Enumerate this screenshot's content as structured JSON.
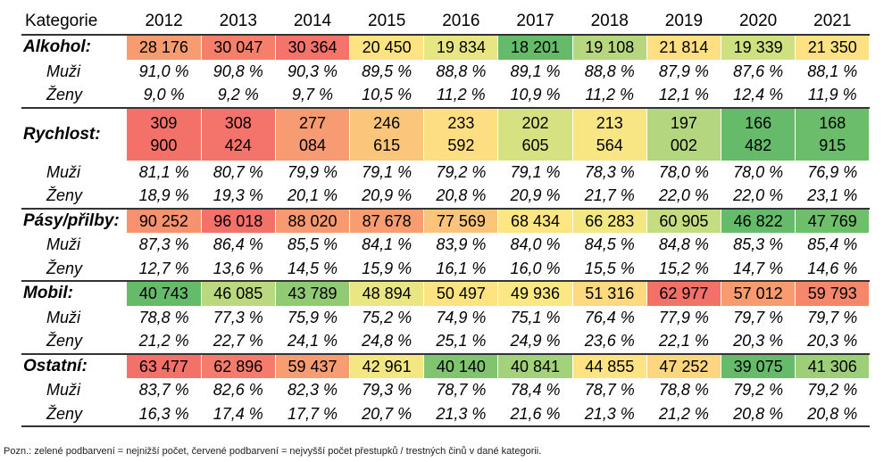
{
  "chart_data": {
    "type": "table",
    "header_label": "Kategorie",
    "years": [
      "2012",
      "2013",
      "2014",
      "2015",
      "2016",
      "2017",
      "2018",
      "2019",
      "2020",
      "2021"
    ],
    "groups": [
      {
        "label": "Alkohol:",
        "totals": [
          "28 176",
          "30 047",
          "30 364",
          "20 450",
          "19 834",
          "18 201",
          "19 108",
          "21 814",
          "19 339",
          "21 350"
        ],
        "total_values": [
          28176,
          30047,
          30364,
          20450,
          19834,
          18201,
          19108,
          21814,
          19339,
          21350
        ],
        "colors": [
          "#f79b71",
          "#f57f6b",
          "#f4736a",
          "#fee383",
          "#e8e683",
          "#66bb6a",
          "#b6d77e",
          "#fedf82",
          "#cee080",
          "#fee183"
        ],
        "muzi_label": "Muži",
        "muzi": [
          "91,0 %",
          "90,8 %",
          "90,3 %",
          "89,5 %",
          "88,8 %",
          "89,1 %",
          "88,8 %",
          "87,9 %",
          "87,6 %",
          "88,1 %"
        ],
        "zeny_label": "Ženy",
        "zeny": [
          "9,0 %",
          "9,2 %",
          "9,7 %",
          "10,5 %",
          "11,2 %",
          "10,9 %",
          "11,2 %",
          "12,1 %",
          "12,4 %",
          "11,9 %"
        ]
      },
      {
        "label": "Rychlost:",
        "totals": [
          "309 900",
          "308 424",
          "277 084",
          "246 615",
          "233 592",
          "202 605",
          "213 564",
          "197 002",
          "166 482",
          "168 915"
        ],
        "total_values": [
          309900,
          308424,
          277084,
          246615,
          233592,
          202605,
          213564,
          197002,
          166482,
          168915
        ],
        "colors": [
          "#f4716a",
          "#f4736a",
          "#f79b72",
          "#fbc67b",
          "#fede82",
          "#d6e181",
          "#f8e584",
          "#b3d67f",
          "#66bb6a",
          "#6bbd6b"
        ],
        "muzi_label": "Muži",
        "muzi": [
          "81,1 %",
          "80,7 %",
          "79,9 %",
          "79,1 %",
          "79,2 %",
          "79,1 %",
          "78,3 %",
          "78,0 %",
          "78,0 %",
          "76,9 %"
        ],
        "zeny_label": "Ženy",
        "zeny": [
          "18,9 %",
          "19,3 %",
          "20,1 %",
          "20,9 %",
          "20,8 %",
          "20,9 %",
          "21,7 %",
          "22,0 %",
          "22,0 %",
          "23,1 %"
        ]
      },
      {
        "label": "Pásy/přilby:",
        "totals": [
          "90 252",
          "96 018",
          "88 020",
          "87 678",
          "77 569",
          "68 434",
          "66 283",
          "60 905",
          "46 822",
          "47 769"
        ],
        "total_values": [
          90252,
          96018,
          88020,
          87678,
          77569,
          68434,
          66283,
          60905,
          46822,
          47769
        ],
        "colors": [
          "#f7916f",
          "#f4716a",
          "#f89a71",
          "#f89d72",
          "#fbc47b",
          "#fee683",
          "#f3e784",
          "#c5dd81",
          "#66bb6a",
          "#6ebe6c"
        ],
        "muzi_label": "Muži",
        "muzi": [
          "87,3 %",
          "86,4 %",
          "85,5 %",
          "84,1 %",
          "83,9 %",
          "84,0 %",
          "84,5 %",
          "84,8 %",
          "85,3 %",
          "85,4 %"
        ],
        "zeny_label": "Ženy",
        "zeny": [
          "12,7 %",
          "13,6 %",
          "14,5 %",
          "15,9 %",
          "16,1 %",
          "16,0 %",
          "15,5 %",
          "15,2 %",
          "14,7 %",
          "14,6 %"
        ]
      },
      {
        "label": "Mobil:",
        "totals": [
          "40 743",
          "46 085",
          "43 789",
          "48 894",
          "50 497",
          "49 936",
          "51 316",
          "62 977",
          "57 012",
          "59 793"
        ],
        "total_values": [
          40743,
          46085,
          43789,
          48894,
          50497,
          49936,
          51316,
          62977,
          57012,
          59793
        ],
        "colors": [
          "#66bb6a",
          "#b9d87f",
          "#90ca74",
          "#e9e683",
          "#fee383",
          "#fbe884",
          "#fdd980",
          "#f4716a",
          "#f99b71",
          "#f6876d"
        ],
        "muzi_label": "Muži",
        "muzi": [
          "78,8 %",
          "77,3 %",
          "75,9 %",
          "75,2 %",
          "74,9 %",
          "75,1 %",
          "76,4 %",
          "77,9 %",
          "79,7 %",
          "79,7 %"
        ],
        "zeny_label": "Ženy",
        "zeny": [
          "21,2 %",
          "22,7 %",
          "24,1 %",
          "24,8 %",
          "25,1 %",
          "24,9 %",
          "23,6 %",
          "22,1 %",
          "20,3 %",
          "20,3 %"
        ]
      },
      {
        "label": "Ostatní:",
        "totals": [
          "63 477",
          "62 896",
          "59 437",
          "42 961",
          "40 140",
          "40 841",
          "44 855",
          "47 252",
          "39 075",
          "41 306"
        ],
        "total_values": [
          63477,
          62896,
          59437,
          42961,
          40140,
          40841,
          44855,
          47252,
          39075,
          41306
        ],
        "colors": [
          "#f4716a",
          "#f57b6c",
          "#f89c72",
          "#f2e783",
          "#80c470",
          "#a3d27b",
          "#fee383",
          "#fed680",
          "#66bb6a",
          "#9dcf79"
        ],
        "muzi_label": "Muži",
        "muzi": [
          "83,7 %",
          "82,6 %",
          "82,3 %",
          "79,3 %",
          "78,7 %",
          "78,4 %",
          "78,7 %",
          "78,8 %",
          "79,2 %",
          "79,2 %"
        ],
        "zeny_label": "Ženy",
        "zeny": [
          "16,3 %",
          "17,4 %",
          "17,7 %",
          "20,7 %",
          "21,3 %",
          "21,6 %",
          "21,3 %",
          "21,2 %",
          "20,8 %",
          "20,8 %"
        ]
      }
    ],
    "note": "Pozn.: zelené podbarvení = nejnižší počet, červené podbarvení = nejvyšší počet přestupků / trestných činů v dané kategorii."
  }
}
